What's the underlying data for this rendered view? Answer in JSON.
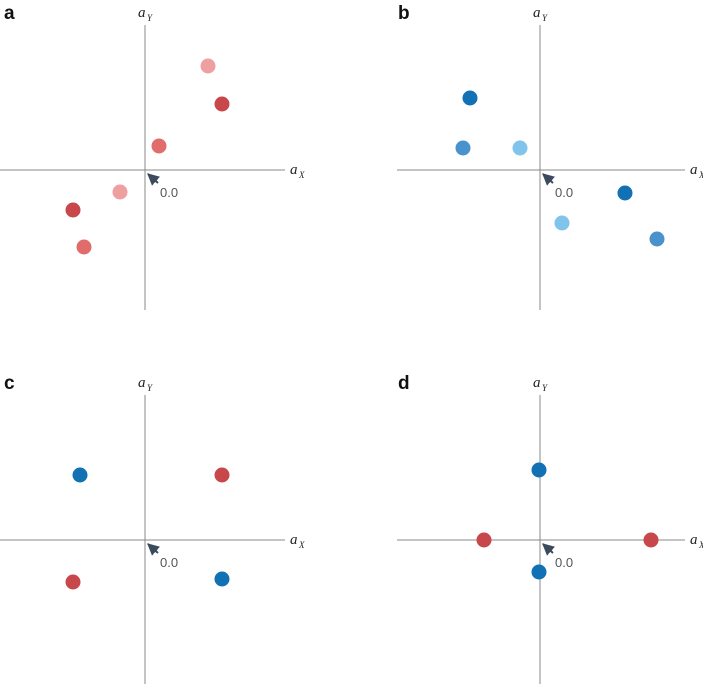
{
  "panels": [
    {
      "label": "a",
      "x_axis": {
        "name": "a",
        "subscript": "X"
      },
      "y_axis": {
        "name": "a",
        "subscript": "Y"
      },
      "origin_label": "0.0"
    },
    {
      "label": "b",
      "x_axis": {
        "name": "a",
        "subscript": "X"
      },
      "y_axis": {
        "name": "a",
        "subscript": "Y"
      },
      "origin_label": "0.0"
    },
    {
      "label": "c",
      "x_axis": {
        "name": "a",
        "subscript": "X"
      },
      "y_axis": {
        "name": "a",
        "subscript": "Y"
      },
      "origin_label": "0.0"
    },
    {
      "label": "d",
      "x_axis": {
        "name": "a",
        "subscript": "X"
      },
      "y_axis": {
        "name": "a",
        "subscript": "Y"
      },
      "origin_label": "0.0"
    }
  ]
}
